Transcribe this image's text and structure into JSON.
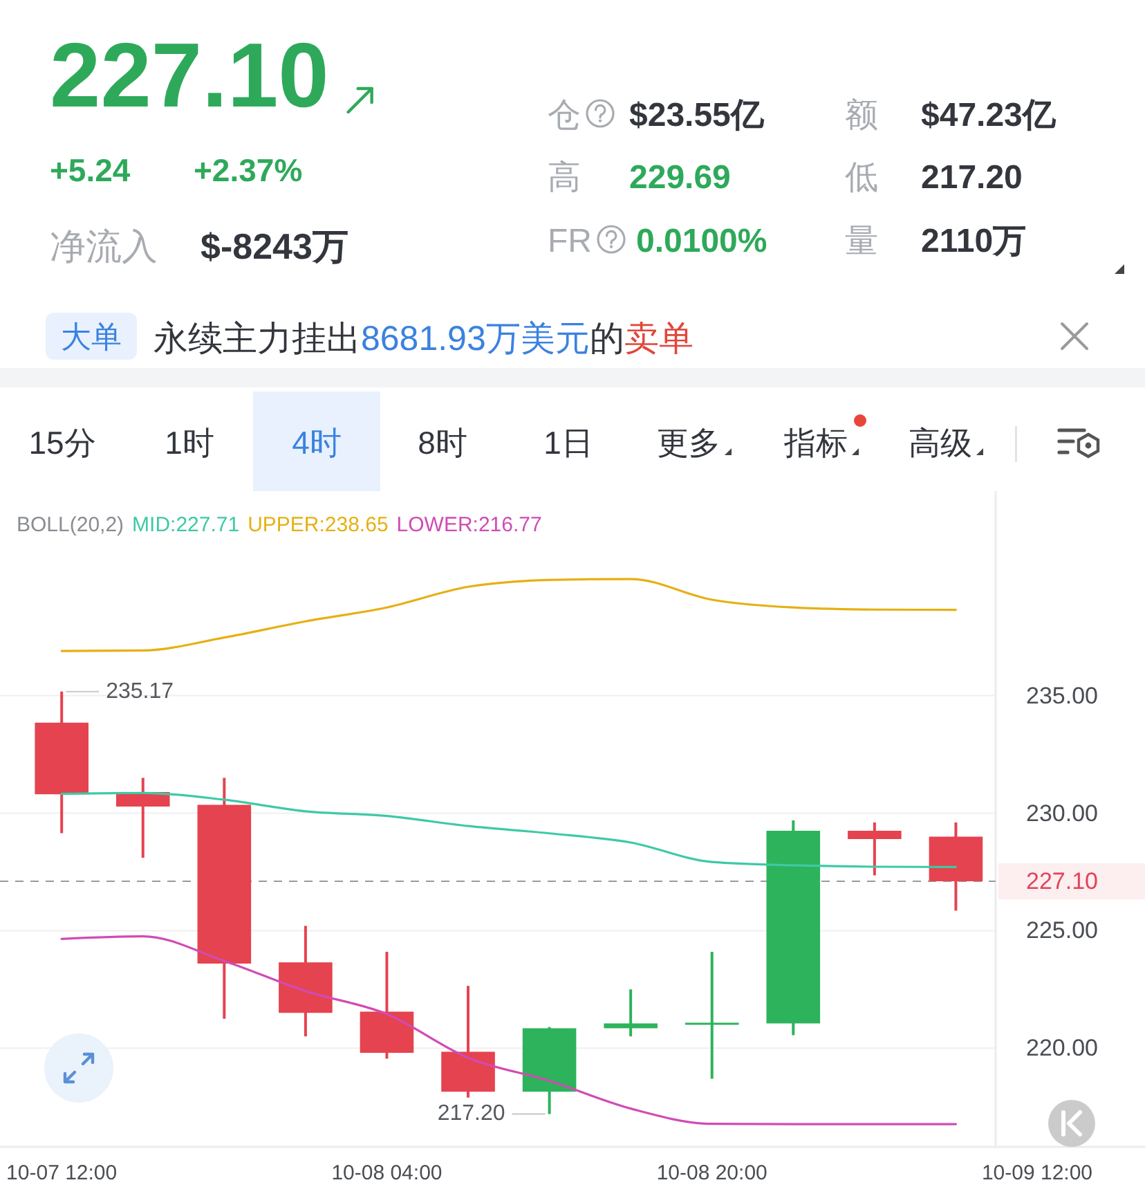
{
  "chart_data": [
    {
      "type": "other",
      "annotations": [
        "227.10",
        "+5.24",
        "+2.37%",
        "净流入",
        "$-8243万",
        "仓",
        "$23.55亿",
        "额",
        "$47.23亿",
        "高",
        "229.69",
        "低",
        "217.20",
        "FR",
        "0.0100%",
        "量",
        "2110万",
        "大单",
        "永续主力挂出",
        "8681.93万美元",
        "的",
        "卖单",
        "15分",
        "1时",
        "4时",
        "8时",
        "1日",
        "更多",
        "指标",
        "高级"
      ]
    },
    {
      "type": "candlestick",
      "categories": [
        "10-07 12:00",
        null,
        null,
        null,
        "10-08 04:00",
        null,
        null,
        null,
        "10-08 20:00",
        null,
        null,
        null,
        "10-09 12:00"
      ],
      "ohlc": [
        [
          233.85,
          235.17,
          229.15,
          230.8
        ],
        [
          230.9,
          231.5,
          228.1,
          230.28
        ],
        [
          230.35,
          231.5,
          221.25,
          223.6
        ],
        [
          223.65,
          225.2,
          220.5,
          221.5
        ],
        [
          221.55,
          224.1,
          219.55,
          219.8
        ],
        [
          219.85,
          222.65,
          217.9,
          218.15
        ],
        [
          218.15,
          220.9,
          217.2,
          220.85
        ],
        [
          220.85,
          222.5,
          220.5,
          221.05
        ],
        [
          221.0,
          224.1,
          218.7,
          221.08
        ],
        [
          221.05,
          229.69,
          220.55,
          229.25
        ],
        [
          229.25,
          229.6,
          227.35,
          228.9
        ],
        [
          229.0,
          229.6,
          225.85,
          227.1
        ],
        null
      ],
      "colors": [
        "#e5434f",
        "#e5434f",
        "#e5434f",
        "#e5434f",
        "#e5434f",
        "#e5434f",
        "#2db35b",
        "#2db35b",
        "#2db35b",
        "#2db35b",
        "#e5434f",
        "#e5434f",
        null
      ],
      "series": [
        {
          "type": "line",
          "name": "MID:227.71",
          "color": "#3ec9a6",
          "values": [
            230.82,
            230.86,
            230.57,
            230.08,
            229.88,
            229.45,
            229.14,
            228.75,
            227.92,
            227.78,
            227.72,
            227.71,
            null
          ]
        },
        {
          "type": "line",
          "name": "UPPER:238.65",
          "color": "#e6b012",
          "values": [
            236.9,
            236.92,
            237.47,
            238.16,
            238.75,
            239.63,
            239.92,
            239.96,
            239.08,
            238.75,
            238.66,
            238.65,
            null
          ]
        },
        {
          "type": "line",
          "name": "LOWER:216.77",
          "color": "#d14bb4",
          "values": [
            224.65,
            224.76,
            223.71,
            222.43,
            221.45,
            219.59,
            218.61,
            217.43,
            216.78,
            216.77,
            216.77,
            216.77,
            null
          ]
        }
      ],
      "legend_title": "BOLL(20,2)",
      "legend": "top left",
      "ylim": [
        215.8,
        243.7
      ],
      "yticks": [
        {
          "value": 220,
          "label": "220.00"
        },
        {
          "value": 225,
          "label": "225.00"
        },
        {
          "value": 230,
          "label": "230.00"
        },
        {
          "value": 235,
          "label": "235.00"
        }
      ],
      "grid": "y",
      "ref_lines": [
        {
          "axis": "y",
          "value": 227.1,
          "label": "227.10",
          "color": "#9a9a9a",
          "line_style": "dashed"
        }
      ],
      "annotations": [
        "235.17",
        "217.20"
      ]
    }
  ]
}
